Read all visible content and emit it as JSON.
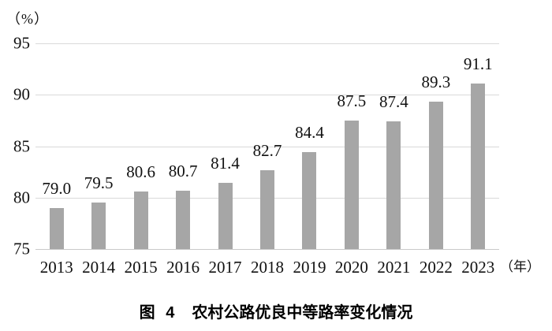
{
  "figure": {
    "y_axis_unit": "（%）",
    "x_axis_unit": "（年）",
    "caption": {
      "label": "图 4",
      "title": "农村公路优良中等路率变化情况"
    }
  },
  "chart_data": {
    "type": "bar",
    "title": "图 4 农村公路优良中等路率变化情况",
    "categories": [
      "2013",
      "2014",
      "2015",
      "2016",
      "2017",
      "2018",
      "2019",
      "2020",
      "2021",
      "2022",
      "2023"
    ],
    "values": [
      79.0,
      79.5,
      80.6,
      80.7,
      81.4,
      82.7,
      84.4,
      87.5,
      87.4,
      89.3,
      91.1
    ],
    "data_labels": [
      "79.0",
      "79.5",
      "80.6",
      "80.7",
      "81.4",
      "82.7",
      "84.4",
      "87.5",
      "87.4",
      "89.3",
      "91.1"
    ],
    "xlabel": "（年）",
    "ylabel": "（%）",
    "ylim": [
      75,
      95
    ],
    "yticks": [
      75,
      80,
      85,
      90,
      95
    ],
    "grid": "horizontal",
    "legend": "none",
    "bar_color": "#a6a6a6",
    "gridline_color": "#d9d9d9",
    "label_color": "#111111"
  }
}
